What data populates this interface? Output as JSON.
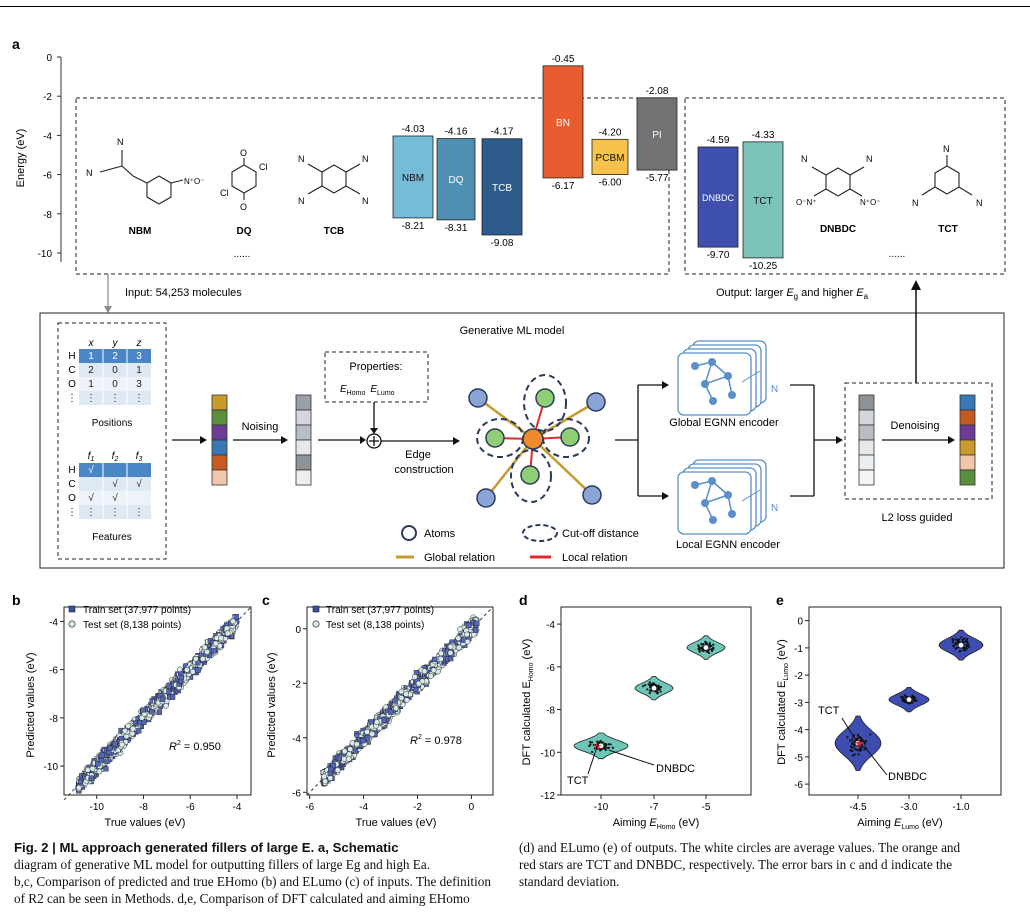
{
  "panel_a": {
    "letter": "a",
    "energy_axis": {
      "label": "Energy (eV)",
      "ticks": [
        "0",
        "-2",
        "-4",
        "-6",
        "-8",
        "-10"
      ]
    },
    "input_molecules": [
      "NBM",
      "DQ",
      "TCB"
    ],
    "input_ellipsis": "......",
    "input_label": "Input: 54,253 molecules",
    "output_molecules": [
      "DNBDC",
      "TCT"
    ],
    "output_ellipsis": "......",
    "output_label_prefix": "Output: larger ",
    "output_label_eg": "E",
    "output_label_eg_sub": "g",
    "output_label_mid": " and higher ",
    "output_label_ea": "E",
    "output_label_ea_sub": "a",
    "energy_bars": [
      {
        "name": "NBM",
        "homo": "-8.21",
        "lumo": "-4.03",
        "color": "#76bcd9"
      },
      {
        "name": "DQ",
        "homo": "-8.31",
        "lumo": "-4.16",
        "color": "#4f8fb2"
      },
      {
        "name": "TCB",
        "homo": "-9.08",
        "lumo": "-4.17",
        "color": "#2c5b8c"
      },
      {
        "name": "BN",
        "homo": "-6.17",
        "lumo": "-0.45",
        "color": "#e85c2f"
      },
      {
        "name": "PCBM",
        "homo": "-6.00",
        "lumo": "-4.20",
        "color": "#f6c24b"
      },
      {
        "name": "PI",
        "homo": "-5.77",
        "lumo": "-2.08",
        "color": "#727272"
      },
      {
        "name": "DNBDC",
        "homo": "-9.70",
        "lumo": "-4.59",
        "color": "#3e4fae"
      },
      {
        "name": "TCT",
        "homo": "-10.25",
        "lumo": "-4.33",
        "color": "#7cc4b9"
      }
    ],
    "model_title": "Generative ML model",
    "positions": {
      "headers": [
        "x",
        "y",
        "z"
      ],
      "rows": [
        [
          "H",
          "1",
          "2",
          "3"
        ],
        [
          "C",
          "2",
          "0",
          "1"
        ],
        [
          "O",
          "1",
          "0",
          "3"
        ],
        [
          "⋮",
          "⋮",
          "⋮",
          "⋮"
        ]
      ],
      "caption": "Positions"
    },
    "features": {
      "headers": [
        "f1",
        "f2",
        "f3"
      ],
      "rows": [
        [
          "H",
          "√",
          "",
          ""
        ],
        [
          "C",
          "",
          "√",
          "√"
        ],
        [
          "O",
          "√",
          "√",
          ""
        ],
        [
          "⋮",
          "⋮",
          "⋮",
          "⋮"
        ]
      ],
      "caption": "Features"
    },
    "noising_label": "Noising",
    "properties_title": "Properties:",
    "properties_homo": "E",
    "properties_homo_sub": "Homo",
    "properties_lumo": "E",
    "properties_lumo_sub": "Lumo",
    "edge_label_1": "Edge",
    "edge_label_2": "construction",
    "global_encoder": "Global EGNN encoder",
    "local_encoder": "Local EGNN encoder",
    "encoder_n": "N",
    "denoising_label": "Denoising",
    "l2_label": "L2 loss guided",
    "legend": {
      "atoms": "Atoms",
      "cutoff": "Cut-off distance",
      "global": "Global relation",
      "local": "Local relation"
    }
  },
  "panel_b": {
    "letter": "b",
    "xlabel": "True values (eV)",
    "ylabel": "Predicted values (eV)",
    "r2_label": "R",
    "r2_sup": "2",
    "r2_value": " = 0.950",
    "legend": [
      "Train set (37,977 points)",
      "Test set (8,138 points)"
    ]
  },
  "panel_c": {
    "letter": "c",
    "xlabel": "True values (eV)",
    "ylabel": "Predicted values (eV)",
    "r2_label": "R",
    "r2_sup": "2",
    "r2_value": " = 0.978",
    "legend": [
      "Train set (37,977 points)",
      "Test set (8,138 points)"
    ]
  },
  "panel_d": {
    "letter": "d",
    "xlabel_pre": "Aiming ",
    "xlabel_e": "E",
    "xlabel_sub": "Homo",
    "xlabel_post": " (eV)",
    "ylabel": "DFT calculated E",
    "ylabel_sub": "Homo",
    "ylabel_post": " (eV)",
    "annot_tct": "TCT",
    "annot_dnbdc": "DNBDC"
  },
  "panel_e": {
    "letter": "e",
    "xlabel_pre": "Aiming ",
    "xlabel_e": "E",
    "xlabel_sub": "Lumo",
    "xlabel_post": " (eV)",
    "ylabel": "DFT calculated E",
    "ylabel_sub": "Lumo",
    "ylabel_post": " (eV)",
    "annot_tct": "TCT",
    "annot_dnbdc": "DNBDC"
  },
  "caption_left": {
    "bold": "Fig. 2 | ML approach generated fillers of large E",
    "line1_rest": ". a, Schematic",
    "line2": "diagram of generative ML model for outputting fillers of large Eg and high Ea.",
    "line3": "b,c, Comparison of predicted and true EHomo (b) and ELumo (c) of inputs. The definition",
    "line4": "of R2 can be seen in Methods. d,e, Comparison of DFT calculated and aiming EHomo"
  },
  "caption_right": {
    "line1": "(d) and ELumo (e) of outputs. The white circles are average values. The orange and",
    "line2": "red stars are TCT and DNBDC, respectively. The error bars in c and d indicate the",
    "line3": "standard deviation."
  },
  "chart_data": [
    {
      "type": "bar",
      "title": "",
      "ylabel": "Energy (eV)",
      "ylim": [
        -10.8,
        0
      ],
      "categories": [
        "NBM",
        "DQ",
        "TCB",
        "BN",
        "PCBM",
        "PI",
        "DNBDC",
        "TCT"
      ],
      "series": [
        {
          "name": "LUMO",
          "values": [
            -4.03,
            -4.16,
            -4.17,
            -0.45,
            -4.2,
            -2.08,
            -4.59,
            -4.33
          ]
        },
        {
          "name": "HOMO",
          "values": [
            -8.21,
            -8.31,
            -9.08,
            -6.17,
            -6.0,
            -5.77,
            -9.7,
            -10.25
          ]
        }
      ]
    },
    {
      "type": "scatter",
      "xlabel": "True values (eV)",
      "ylabel": "Predicted values (eV)",
      "xlim": [
        -11.4,
        -3.4
      ],
      "ylim": [
        -11.2,
        -3.4
      ],
      "xticks": [
        -10,
        -8,
        -6,
        -4
      ],
      "yticks": [
        -10,
        -8,
        -6,
        -4
      ],
      "series": [
        {
          "name": "Train set (37,977 points)"
        },
        {
          "name": "Test set (8,138 points)"
        }
      ],
      "r2": 0.95
    },
    {
      "type": "scatter",
      "xlabel": "True values (eV)",
      "ylabel": "Predicted values (eV)",
      "xlim": [
        -6.1,
        0.8
      ],
      "ylim": [
        -6.1,
        0.8
      ],
      "xticks": [
        -6,
        -4,
        -2,
        0
      ],
      "yticks": [
        -6,
        -4,
        -2,
        0
      ],
      "series": [
        {
          "name": "Train set (37,977 points)"
        },
        {
          "name": "Test set (8,138 points)"
        }
      ],
      "r2": 0.978
    },
    {
      "type": "scatter",
      "xlabel": "Aiming E_Homo (eV)",
      "ylabel": "DFT calculated E_Homo (eV)",
      "categories": [
        "-10",
        "-7",
        "-5"
      ],
      "yticks": [
        -12,
        -10,
        -8,
        -6,
        -4
      ],
      "ylim": [
        -12,
        -3.2
      ],
      "means": [
        -9.7,
        -7.0,
        -5.1
      ]
    },
    {
      "type": "scatter",
      "xlabel": "Aiming E_Lumo (eV)",
      "ylabel": "DFT calculated E_Lumo (eV)",
      "categories": [
        "-4.5",
        "-3.0",
        "-1.0"
      ],
      "yticks": [
        -6,
        -5,
        -4,
        -3,
        -2,
        -1,
        0
      ],
      "ylim": [
        -6.4,
        0.5
      ],
      "means": [
        -4.5,
        -2.9,
        -0.9
      ]
    }
  ]
}
